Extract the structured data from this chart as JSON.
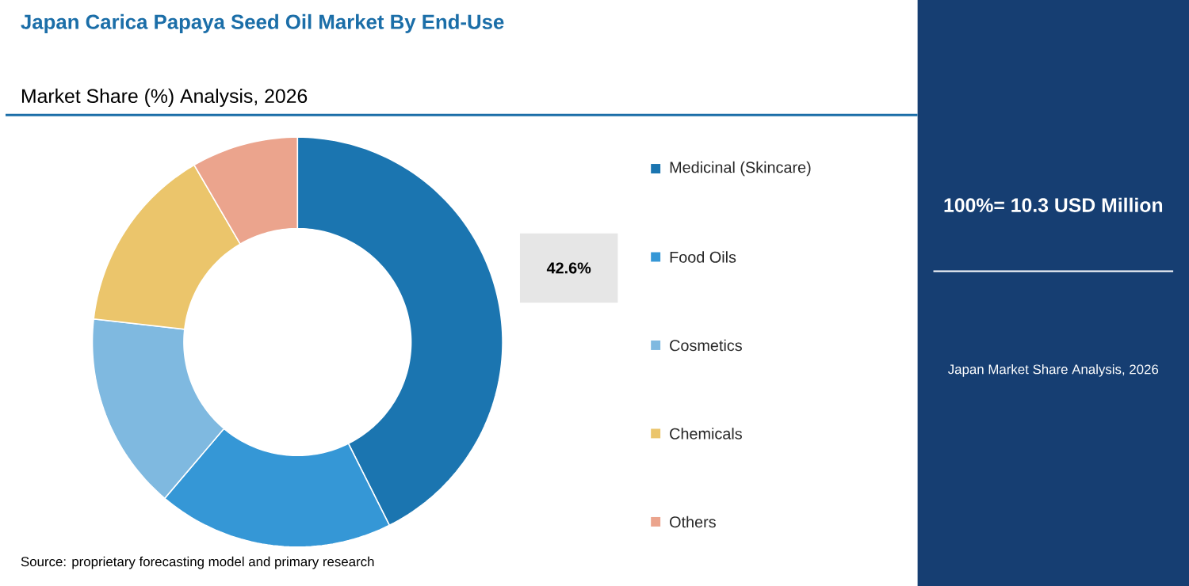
{
  "chart_data": {
    "type": "donut",
    "title": "Japan Carica Papaya Seed Oil Market By End-Use",
    "subtitle": "Market Share (%) Analysis, 2026",
    "categories": [
      "Medicinal (Skincare)",
      "Food Oils",
      "Cosmetics",
      "Chemicals",
      "Others"
    ],
    "values": [
      42.6,
      18.6,
      15.6,
      14.8,
      8.4
    ],
    "colors": [
      "#1b75b0",
      "#3597d6",
      "#7fb9e0",
      "#ebc56b",
      "#eba48d"
    ],
    "value_labels": [
      "42.6%",
      null,
      null,
      null,
      null
    ],
    "legend": "right",
    "annotations": [
      "100%= 10.3 USD Million",
      "Japan Market Share Analysis, 2026",
      "Source: proprietary forecasting model and primary research"
    ]
  }
}
